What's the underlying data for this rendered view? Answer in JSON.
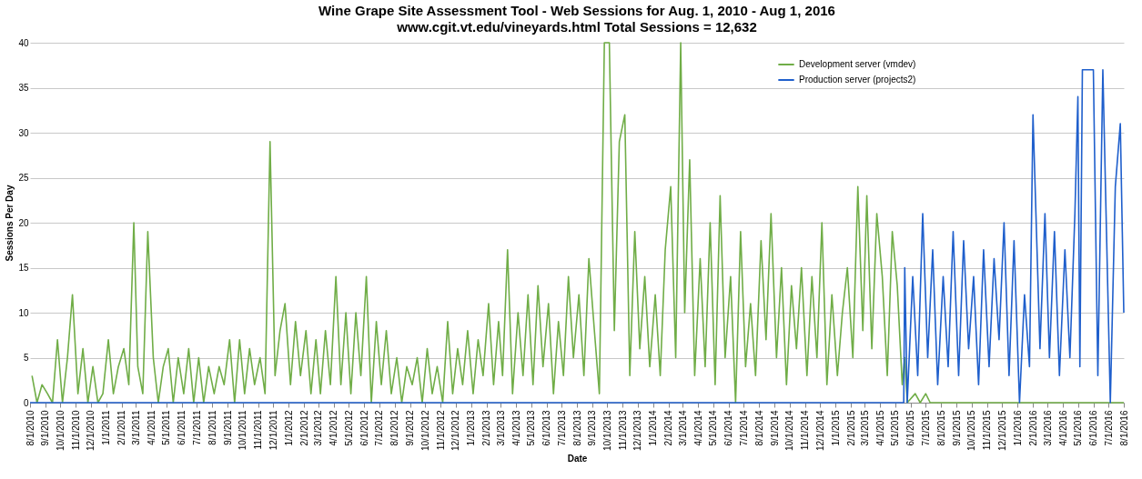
{
  "chart_data": {
    "type": "line",
    "title": "Wine Grape Site Assessment Tool - Web Sessions for Aug. 1, 2010 - Aug 1, 2016",
    "subtitle": "www.cgit.vt.edu/vineyards.html   Total Sessions = 12,632",
    "xlabel": "Date",
    "ylabel": "Sessions Per Day",
    "xlim": [
      "2010-08-01",
      "2016-08-01"
    ],
    "ylim": [
      0,
      40
    ],
    "yticks": [
      0,
      5,
      10,
      15,
      20,
      25,
      30,
      35,
      40
    ],
    "xticks": [
      {
        "value": "2010-08-01",
        "label": "8/1/2010"
      },
      {
        "value": "2010-09-01",
        "label": "9/1/2010"
      },
      {
        "value": "2010-10-01",
        "label": "10/1/2010"
      },
      {
        "value": "2010-11-01",
        "label": "11/1/2010"
      },
      {
        "value": "2010-12-01",
        "label": "12/1/2010"
      },
      {
        "value": "2011-01-01",
        "label": "1/1/2011"
      },
      {
        "value": "2011-02-01",
        "label": "2/1/2011"
      },
      {
        "value": "2011-03-01",
        "label": "3/1/2011"
      },
      {
        "value": "2011-04-01",
        "label": "4/1/2011"
      },
      {
        "value": "2011-05-01",
        "label": "5/1/2011"
      },
      {
        "value": "2011-06-01",
        "label": "6/1/2011"
      },
      {
        "value": "2011-07-01",
        "label": "7/1/2011"
      },
      {
        "value": "2011-08-01",
        "label": "8/1/2011"
      },
      {
        "value": "2011-09-01",
        "label": "9/1/2011"
      },
      {
        "value": "2011-10-01",
        "label": "10/1/2011"
      },
      {
        "value": "2011-11-01",
        "label": "11/1/2011"
      },
      {
        "value": "2011-12-01",
        "label": "12/1/2011"
      },
      {
        "value": "2012-01-01",
        "label": "1/1/2012"
      },
      {
        "value": "2012-02-01",
        "label": "2/1/2012"
      },
      {
        "value": "2012-03-01",
        "label": "3/1/2012"
      },
      {
        "value": "2012-04-01",
        "label": "4/1/2012"
      },
      {
        "value": "2012-05-01",
        "label": "5/1/2012"
      },
      {
        "value": "2012-06-01",
        "label": "6/1/2012"
      },
      {
        "value": "2012-07-01",
        "label": "7/1/2012"
      },
      {
        "value": "2012-08-01",
        "label": "8/1/2012"
      },
      {
        "value": "2012-09-01",
        "label": "9/1/2012"
      },
      {
        "value": "2012-10-01",
        "label": "10/1/2012"
      },
      {
        "value": "2012-11-01",
        "label": "11/1/2012"
      },
      {
        "value": "2012-12-01",
        "label": "12/1/2012"
      },
      {
        "value": "2013-01-01",
        "label": "1/1/2013"
      },
      {
        "value": "2013-02-01",
        "label": "2/1/2013"
      },
      {
        "value": "2013-03-01",
        "label": "3/1/2013"
      },
      {
        "value": "2013-04-01",
        "label": "4/1/2013"
      },
      {
        "value": "2013-05-01",
        "label": "5/1/2013"
      },
      {
        "value": "2013-06-01",
        "label": "6/1/2013"
      },
      {
        "value": "2013-07-01",
        "label": "7/1/2013"
      },
      {
        "value": "2013-08-01",
        "label": "8/1/2013"
      },
      {
        "value": "2013-09-01",
        "label": "9/1/2013"
      },
      {
        "value": "2013-10-01",
        "label": "10/1/2013"
      },
      {
        "value": "2013-11-01",
        "label": "11/1/2013"
      },
      {
        "value": "2013-12-01",
        "label": "12/1/2013"
      },
      {
        "value": "2014-01-01",
        "label": "1/1/2014"
      },
      {
        "value": "2014-02-01",
        "label": "2/1/2014"
      },
      {
        "value": "2014-03-01",
        "label": "3/1/2014"
      },
      {
        "value": "2014-04-01",
        "label": "4/1/2014"
      },
      {
        "value": "2014-05-01",
        "label": "5/1/2014"
      },
      {
        "value": "2014-06-01",
        "label": "6/1/2014"
      },
      {
        "value": "2014-07-01",
        "label": "7/1/2014"
      },
      {
        "value": "2014-08-01",
        "label": "8/1/2014"
      },
      {
        "value": "2014-09-01",
        "label": "9/1/2014"
      },
      {
        "value": "2014-10-01",
        "label": "10/1/2014"
      },
      {
        "value": "2014-11-01",
        "label": "11/1/2014"
      },
      {
        "value": "2014-12-01",
        "label": "12/1/2014"
      },
      {
        "value": "2015-01-01",
        "label": "1/1/2015"
      },
      {
        "value": "2015-02-01",
        "label": "2/1/2015"
      },
      {
        "value": "2015-03-01",
        "label": "3/1/2015"
      },
      {
        "value": "2015-04-01",
        "label": "4/1/2015"
      },
      {
        "value": "2015-05-01",
        "label": "5/1/2015"
      },
      {
        "value": "2015-06-01",
        "label": "6/1/2015"
      },
      {
        "value": "2015-07-01",
        "label": "7/1/2015"
      },
      {
        "value": "2015-08-01",
        "label": "8/1/2015"
      },
      {
        "value": "2015-09-01",
        "label": "9/1/2015"
      },
      {
        "value": "2015-10-01",
        "label": "10/1/2015"
      },
      {
        "value": "2015-11-01",
        "label": "11/1/2015"
      },
      {
        "value": "2015-12-01",
        "label": "12/1/2015"
      },
      {
        "value": "2016-01-01",
        "label": "1/1/2016"
      },
      {
        "value": "2016-02-01",
        "label": "2/1/2016"
      },
      {
        "value": "2016-03-01",
        "label": "3/1/2016"
      },
      {
        "value": "2016-04-01",
        "label": "4/1/2016"
      },
      {
        "value": "2016-05-01",
        "label": "5/1/2016"
      },
      {
        "value": "2016-06-01",
        "label": "6/1/2016"
      },
      {
        "value": "2016-07-01",
        "label": "7/1/2016"
      },
      {
        "value": "2016-08-01",
        "label": "8/1/2016"
      }
    ],
    "grid": "y",
    "legend": "top right",
    "line_style": "solid",
    "series": [
      {
        "name": "Development server (vmdev)",
        "color": "#70ad47",
        "x": [
          "2010-08-05",
          "2010-08-15",
          "2010-08-25",
          "2010-09-05",
          "2010-09-15",
          "2010-09-25",
          "2010-10-05",
          "2010-10-15",
          "2010-10-25",
          "2010-11-05",
          "2010-11-15",
          "2010-11-25",
          "2010-12-05",
          "2010-12-15",
          "2010-12-25",
          "2011-01-05",
          "2011-01-15",
          "2011-01-25",
          "2011-02-05",
          "2011-02-15",
          "2011-02-25",
          "2011-03-05",
          "2011-03-15",
          "2011-03-25",
          "2011-04-05",
          "2011-04-15",
          "2011-04-25",
          "2011-05-05",
          "2011-05-15",
          "2011-05-25",
          "2011-06-05",
          "2011-06-15",
          "2011-06-25",
          "2011-07-05",
          "2011-07-15",
          "2011-07-25",
          "2011-08-05",
          "2011-08-15",
          "2011-08-25",
          "2011-09-05",
          "2011-09-15",
          "2011-09-25",
          "2011-10-05",
          "2011-10-15",
          "2011-10-25",
          "2011-11-05",
          "2011-11-15",
          "2011-11-25",
          "2011-12-05",
          "2011-12-15",
          "2011-12-25",
          "2012-01-05",
          "2012-01-15",
          "2012-01-25",
          "2012-02-05",
          "2012-02-15",
          "2012-02-25",
          "2012-03-05",
          "2012-03-15",
          "2012-03-25",
          "2012-04-05",
          "2012-04-15",
          "2012-04-25",
          "2012-05-05",
          "2012-05-15",
          "2012-05-25",
          "2012-06-05",
          "2012-06-15",
          "2012-06-25",
          "2012-07-05",
          "2012-07-15",
          "2012-07-25",
          "2012-08-05",
          "2012-08-15",
          "2012-08-25",
          "2012-09-05",
          "2012-09-15",
          "2012-09-25",
          "2012-10-05",
          "2012-10-15",
          "2012-10-25",
          "2012-11-05",
          "2012-11-15",
          "2012-11-25",
          "2012-12-05",
          "2012-12-15",
          "2012-12-25",
          "2013-01-05",
          "2013-01-15",
          "2013-01-25",
          "2013-02-05",
          "2013-02-15",
          "2013-02-25",
          "2013-03-05",
          "2013-03-15",
          "2013-03-25",
          "2013-04-05",
          "2013-04-15",
          "2013-04-25",
          "2013-05-05",
          "2013-05-15",
          "2013-05-25",
          "2013-06-05",
          "2013-06-15",
          "2013-06-25",
          "2013-07-05",
          "2013-07-15",
          "2013-07-25",
          "2013-08-05",
          "2013-08-15",
          "2013-08-25",
          "2013-09-05",
          "2013-09-15",
          "2013-09-25",
          "2013-10-05",
          "2013-10-15",
          "2013-10-25",
          "2013-11-05",
          "2013-11-15",
          "2013-11-25",
          "2013-12-05",
          "2013-12-15",
          "2013-12-25",
          "2014-01-05",
          "2014-01-15",
          "2014-01-25",
          "2014-02-05",
          "2014-02-15",
          "2014-02-25",
          "2014-03-05",
          "2014-03-15",
          "2014-03-25",
          "2014-04-05",
          "2014-04-15",
          "2014-04-25",
          "2014-05-05",
          "2014-05-15",
          "2014-05-25",
          "2014-06-05",
          "2014-06-15",
          "2014-06-25",
          "2014-07-05",
          "2014-07-15",
          "2014-07-25",
          "2014-08-05",
          "2014-08-15",
          "2014-08-25",
          "2014-09-05",
          "2014-09-15",
          "2014-09-25",
          "2014-10-05",
          "2014-10-15",
          "2014-10-25",
          "2014-11-05",
          "2014-11-15",
          "2014-11-25",
          "2014-12-05",
          "2014-12-15",
          "2014-12-25",
          "2015-01-05",
          "2015-01-15",
          "2015-01-25",
          "2015-02-05",
          "2015-02-15",
          "2015-02-25",
          "2015-03-05",
          "2015-03-15",
          "2015-03-25",
          "2015-04-05",
          "2015-04-15",
          "2015-04-25",
          "2015-05-05",
          "2015-05-15",
          "2015-05-20",
          "2015-05-25",
          "2015-06-10",
          "2015-06-20",
          "2015-07-01",
          "2015-07-10",
          "2016-08-01"
        ],
        "values": [
          3,
          0,
          2,
          1,
          0,
          7,
          0,
          5,
          12,
          1,
          6,
          0,
          4,
          0,
          1,
          7,
          1,
          4,
          6,
          2,
          20,
          4,
          1,
          19,
          5,
          0,
          4,
          6,
          0,
          5,
          1,
          6,
          0,
          5,
          0,
          4,
          1,
          4,
          2,
          7,
          0,
          7,
          1,
          6,
          2,
          5,
          1,
          29,
          3,
          8,
          11,
          2,
          9,
          3,
          8,
          1,
          7,
          1,
          8,
          2,
          14,
          2,
          10,
          1,
          10,
          3,
          14,
          0,
          9,
          2,
          8,
          1,
          5,
          0,
          4,
          2,
          5,
          0,
          6,
          1,
          4,
          0,
          9,
          1,
          6,
          2,
          8,
          1,
          7,
          3,
          11,
          2,
          9,
          3,
          17,
          1,
          10,
          3,
          12,
          2,
          13,
          4,
          11,
          1,
          9,
          3,
          14,
          5,
          12,
          3,
          16,
          8,
          1,
          40,
          40,
          8,
          29,
          32,
          3,
          19,
          6,
          14,
          4,
          12,
          3,
          17,
          24,
          5,
          40,
          10,
          27,
          3,
          16,
          4,
          20,
          2,
          23,
          5,
          14,
          0,
          19,
          4,
          11,
          3,
          18,
          7,
          21,
          5,
          15,
          2,
          13,
          6,
          15,
          3,
          14,
          5,
          20,
          2,
          12,
          3,
          10,
          15,
          5,
          24,
          8,
          23,
          6,
          21,
          14,
          3,
          19,
          13,
          2,
          5,
          0,
          1,
          0,
          1,
          0,
          0
        ]
      },
      {
        "name": "Production server (projects2)",
        "color": "#1f5fcc",
        "x": [
          "2010-08-01",
          "2015-05-18",
          "2015-05-20",
          "2015-05-25",
          "2015-06-05",
          "2015-06-15",
          "2015-06-25",
          "2015-07-05",
          "2015-07-15",
          "2015-07-25",
          "2015-08-05",
          "2015-08-15",
          "2015-08-25",
          "2015-09-05",
          "2015-09-15",
          "2015-09-25",
          "2015-10-05",
          "2015-10-15",
          "2015-10-25",
          "2015-11-05",
          "2015-11-15",
          "2015-11-25",
          "2015-12-05",
          "2015-12-15",
          "2015-12-25",
          "2016-01-05",
          "2016-01-15",
          "2016-01-25",
          "2016-02-01",
          "2016-02-15",
          "2016-02-25",
          "2016-03-05",
          "2016-03-15",
          "2016-03-25",
          "2016-04-05",
          "2016-04-15",
          "2016-04-25",
          "2016-05-01",
          "2016-05-05",
          "2016-05-10",
          "2016-06-01",
          "2016-06-10",
          "2016-06-20",
          "2016-07-05",
          "2016-07-15",
          "2016-07-25",
          "2016-08-01"
        ],
        "values": [
          0,
          0,
          15,
          0,
          14,
          3,
          21,
          5,
          17,
          2,
          14,
          4,
          19,
          3,
          18,
          6,
          14,
          2,
          17,
          4,
          16,
          7,
          20,
          3,
          18,
          0,
          12,
          4,
          32,
          6,
          21,
          5,
          19,
          3,
          17,
          5,
          21,
          34,
          4,
          37,
          37,
          3,
          37,
          0,
          24,
          31,
          10
        ]
      }
    ]
  }
}
